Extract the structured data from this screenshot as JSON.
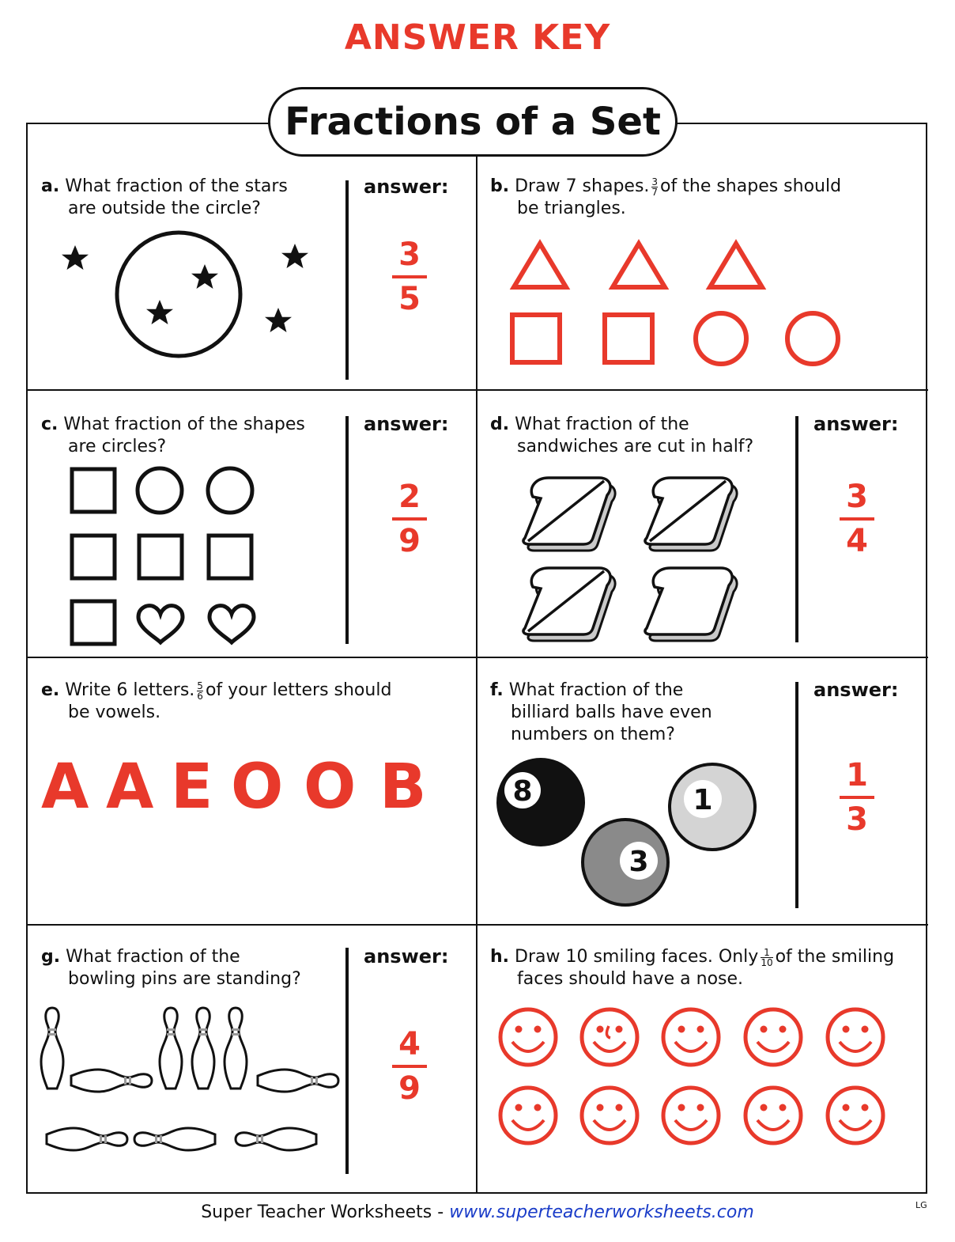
{
  "header": {
    "answer_key": "ANSWER KEY",
    "title": "Fractions of a Set"
  },
  "answer_label": "answer:",
  "colors": {
    "accent": "#e8392b",
    "ink": "#111111",
    "link": "#1a3cc8"
  },
  "a": {
    "letter": "a.",
    "line1": "What fraction of the stars",
    "line2": "are outside the circle?",
    "num": "3",
    "den": "5"
  },
  "b": {
    "letter": "b.",
    "pre": "Draw 7 shapes.",
    "fnum": "3",
    "fden": "7",
    "post": "of the shapes should",
    "line2": "be triangles."
  },
  "c": {
    "letter": "c.",
    "line1": "What fraction of the shapes",
    "line2": "are circles?",
    "num": "2",
    "den": "9"
  },
  "d": {
    "letter": "d.",
    "line1": "What fraction of the",
    "line2": "sandwiches are cut in half?",
    "num": "3",
    "den": "4"
  },
  "e": {
    "letter": "e.",
    "pre": "Write 6 letters.",
    "fnum": "5",
    "fden": "6",
    "post": "of your letters should",
    "line2": "be vowels.",
    "letters": [
      "A",
      "A",
      "E",
      "O",
      "O",
      "B"
    ]
  },
  "f": {
    "letter": "f.",
    "line1": "What fraction of the",
    "line2": "billiard balls have even",
    "line3": "numbers on them?",
    "balls": [
      "8",
      "1",
      "3"
    ],
    "num": "1",
    "den": "3"
  },
  "g": {
    "letter": "g.",
    "line1": "What fraction of the",
    "line2": "bowling pins are standing?",
    "num": "4",
    "den": "9"
  },
  "h": {
    "letter": "h.",
    "pre": "Draw 10 smiling faces. Only",
    "fnum": "1",
    "fden": "10",
    "post": "of the smiling",
    "line2": "faces should have a nose."
  },
  "footer": {
    "brand": "Super Teacher Worksheets -",
    "url": "www.superteacherworksheets.com",
    "code": "LG"
  }
}
